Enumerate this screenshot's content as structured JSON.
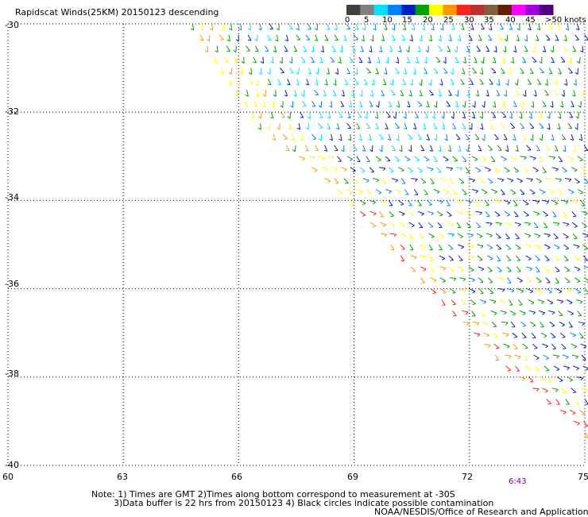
{
  "title": "Rapidscat Winds(25KM) 20150123 descending",
  "legend": {
    "labels": [
      "0",
      "5",
      "10",
      "15",
      "20",
      "25",
      "30",
      "35",
      "40",
      "45",
      ">50 knots"
    ],
    "colors": [
      "#404040",
      "#808080",
      "#00e0ff",
      "#0080ff",
      "#0020c0",
      "#00a000",
      "#ffff00",
      "#ff9900",
      "#ff2020",
      "#c03030",
      "#806040",
      "#602000",
      "#ff00ff",
      "#a000e0",
      "#500080"
    ]
  },
  "axes": {
    "lat_labels": [
      "-30",
      "-32",
      "-34",
      "-36",
      "-38",
      "-40"
    ],
    "lon_labels": [
      "60",
      "63",
      "66",
      "69",
      "72",
      "75"
    ]
  },
  "time_label": "6:43",
  "notes": {
    "line1": "Note: 1) Times are GMT 2)Times along bottom correspond to measurement at -30S",
    "line2": "3)Data buffer is 22 hrs from 20150123 4) Black circles indicate possible contamination",
    "credit": "NOAA/NESDIS/Office of Research and Applications"
  },
  "chart_data": {
    "type": "wind-barb-map",
    "lat_range": [
      -40,
      -30
    ],
    "lon_range": [
      60,
      75
    ],
    "grid": true,
    "swath_edge": [
      [
        64.8,
        -30.0
      ],
      [
        66.5,
        -32.2
      ],
      [
        68.9,
        -34.0
      ],
      [
        71.0,
        -36.0
      ],
      [
        73.0,
        -37.8
      ],
      [
        75.0,
        -39.2
      ]
    ],
    "speed_classes_knots": [
      0,
      5,
      10,
      15,
      20,
      25,
      30,
      35,
      40,
      45,
      50
    ]
  }
}
